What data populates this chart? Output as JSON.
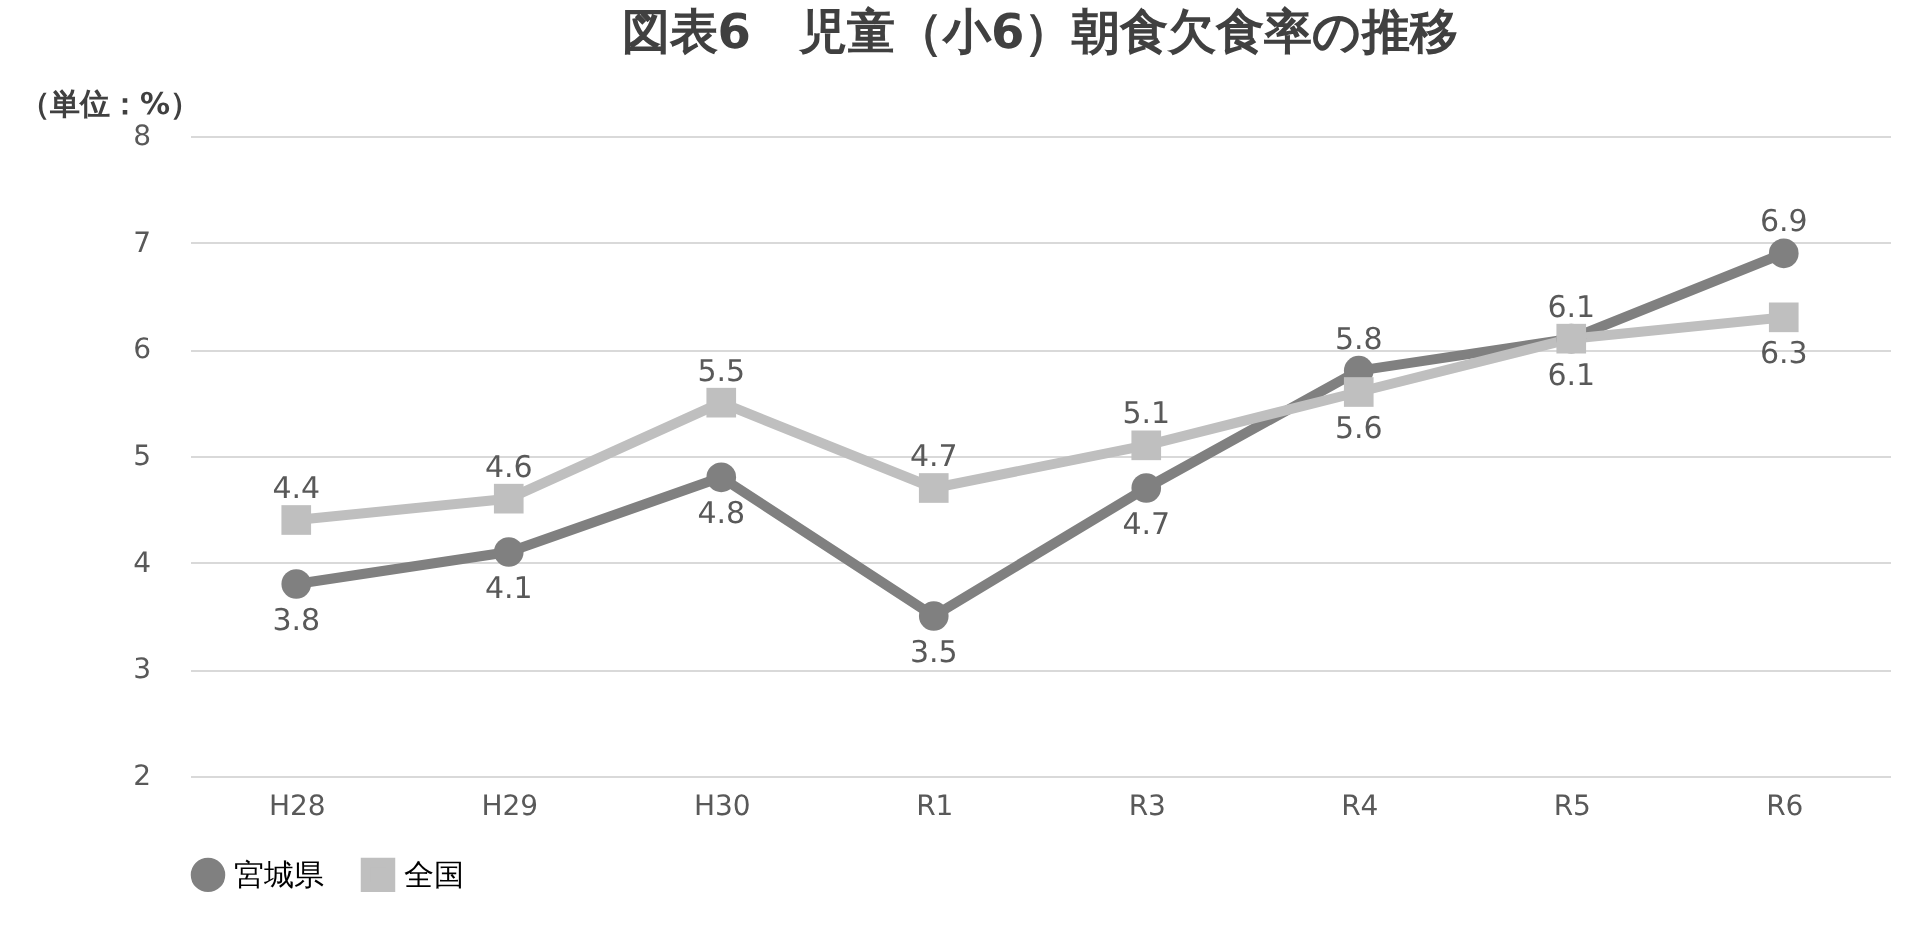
{
  "chart_data": {
    "type": "line",
    "title": "図表6　児童（小6）朝食欠食率の推移",
    "annotations": [
      "（単位：%）"
    ],
    "categories": [
      "H28",
      "H29",
      "H30",
      "R1",
      "R3",
      "R4",
      "R5",
      "R6"
    ],
    "series": [
      {
        "name": "宮城県",
        "color": "#808080",
        "marker": "circle",
        "values": [
          3.8,
          4.1,
          4.8,
          3.5,
          4.7,
          5.8,
          6.1,
          6.9
        ]
      },
      {
        "name": "全国",
        "color": "#bfbfbf",
        "marker": "square",
        "values": [
          4.4,
          4.6,
          5.5,
          4.7,
          5.1,
          5.6,
          6.1,
          6.3
        ]
      }
    ],
    "ylim": [
      2,
      8
    ],
    "yticks": [
      2,
      3,
      4,
      5,
      6,
      7,
      8
    ],
    "grid": "y",
    "legend": "bottom",
    "data_labels": true,
    "line_style": "solid"
  }
}
